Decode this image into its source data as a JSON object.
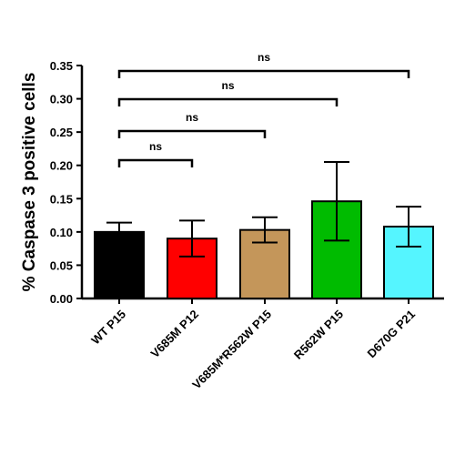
{
  "chart_data": {
    "type": "bar",
    "ylabel": "% Caspase 3 positive cells",
    "xlabel": "",
    "ylim": [
      0,
      0.35
    ],
    "yticks": [
      "0.00",
      "0.05",
      "0.10",
      "0.15",
      "0.20",
      "0.25",
      "0.30",
      "0.35"
    ],
    "categories": [
      "WT P15",
      "V685M P12",
      "V685M*R562W P15",
      "R562W  P15",
      "D670G P21"
    ],
    "values": [
      0.1,
      0.09,
      0.103,
      0.146,
      0.108
    ],
    "error": [
      0.014,
      0.027,
      0.019,
      0.059,
      0.03
    ],
    "colors": [
      "#000000",
      "#ff0000",
      "#c4965a",
      "#00bb00",
      "#55f5ff"
    ],
    "significance": [
      {
        "from": 0,
        "to": 1,
        "label": "ns"
      },
      {
        "from": 0,
        "to": 2,
        "label": "ns"
      },
      {
        "from": 0,
        "to": 3,
        "label": "ns"
      },
      {
        "from": 0,
        "to": 4,
        "label": "ns"
      }
    ]
  }
}
